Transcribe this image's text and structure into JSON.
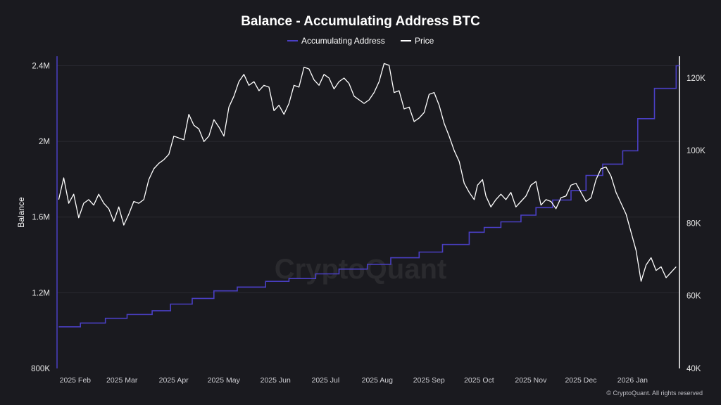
{
  "chart_data": {
    "type": "line",
    "title": "Balance - Accumulating Address BTC",
    "ylabel": "Balance",
    "ylabel_right": "",
    "ylim": [
      800000,
      2450000
    ],
    "ylim_right": [
      40000,
      126000
    ],
    "y_ticks": [
      "800K",
      "1.2M",
      "1.6M",
      "2M",
      "2.4M"
    ],
    "y_tick_values": [
      800000,
      1200000,
      1600000,
      2000000,
      2400000
    ],
    "y_right_ticks": [
      "40K",
      "60K",
      "80K",
      "100K",
      "120K"
    ],
    "y_right_tick_values": [
      40000,
      60000,
      80000,
      100000,
      120000
    ],
    "x_ticks": [
      "2025 Feb",
      "2025 Mar",
      "2025 Apr",
      "2025 May",
      "2025 Jun",
      "2025 Jul",
      "2025 Aug",
      "2025 Sep",
      "2025 Oct",
      "2025 Nov",
      "2025 Dec",
      "2026 Jan"
    ],
    "x_tick_values": [
      "2025-02-01",
      "2025-03-01",
      "2025-04-01",
      "2025-05-01",
      "2025-06-01",
      "2025-07-01",
      "2025-08-01",
      "2025-09-01",
      "2025-10-01",
      "2025-11-01",
      "2025-12-01",
      "2026-01-01"
    ],
    "xlim": [
      "2025-01-27",
      "2026-02-04"
    ],
    "grid": true,
    "legend_position": "top-center",
    "series": [
      {
        "name": "Accumulating Address",
        "axis": "left",
        "color": "#4a3fc4",
        "step": true,
        "x": [
          "2025-01-28",
          "2025-02-10",
          "2025-02-25",
          "2025-03-10",
          "2025-03-25",
          "2025-04-05",
          "2025-04-18",
          "2025-05-01",
          "2025-05-15",
          "2025-06-01",
          "2025-06-15",
          "2025-07-01",
          "2025-07-15",
          "2025-08-01",
          "2025-08-15",
          "2025-09-01",
          "2025-09-15",
          "2025-10-01",
          "2025-10-10",
          "2025-10-20",
          "2025-11-01",
          "2025-11-10",
          "2025-11-20",
          "2025-12-01",
          "2025-12-10",
          "2025-12-20",
          "2026-01-01",
          "2026-01-10",
          "2026-01-20",
          "2026-02-02"
        ],
        "values": [
          1020000,
          1040000,
          1065000,
          1085000,
          1105000,
          1140000,
          1170000,
          1210000,
          1230000,
          1260000,
          1275000,
          1300000,
          1325000,
          1350000,
          1385000,
          1415000,
          1455000,
          1520000,
          1545000,
          1575000,
          1610000,
          1650000,
          1690000,
          1740000,
          1820000,
          1880000,
          1950000,
          2120000,
          2280000,
          2400000
        ]
      },
      {
        "name": "Price",
        "axis": "right",
        "color": "#ffffff",
        "x": [
          "2025-01-28",
          "2025-01-31",
          "2025-02-03",
          "2025-02-06",
          "2025-02-09",
          "2025-02-12",
          "2025-02-15",
          "2025-02-18",
          "2025-02-21",
          "2025-02-24",
          "2025-02-27",
          "2025-03-02",
          "2025-03-05",
          "2025-03-08",
          "2025-03-11",
          "2025-03-14",
          "2025-03-17",
          "2025-03-20",
          "2025-03-23",
          "2025-03-26",
          "2025-03-29",
          "2025-04-01",
          "2025-04-04",
          "2025-04-07",
          "2025-04-10",
          "2025-04-13",
          "2025-04-16",
          "2025-04-19",
          "2025-04-22",
          "2025-04-25",
          "2025-04-28",
          "2025-05-01",
          "2025-05-04",
          "2025-05-07",
          "2025-05-10",
          "2025-05-13",
          "2025-05-16",
          "2025-05-19",
          "2025-05-22",
          "2025-05-25",
          "2025-05-28",
          "2025-05-31",
          "2025-06-03",
          "2025-06-06",
          "2025-06-09",
          "2025-06-12",
          "2025-06-15",
          "2025-06-18",
          "2025-06-21",
          "2025-06-24",
          "2025-06-27",
          "2025-06-30",
          "2025-07-03",
          "2025-07-06",
          "2025-07-09",
          "2025-07-12",
          "2025-07-15",
          "2025-07-18",
          "2025-07-21",
          "2025-07-24",
          "2025-07-27",
          "2025-07-30",
          "2025-08-02",
          "2025-08-05",
          "2025-08-08",
          "2025-08-11",
          "2025-08-14",
          "2025-08-17",
          "2025-08-20",
          "2025-08-23",
          "2025-08-26",
          "2025-08-29",
          "2025-09-01",
          "2025-09-04",
          "2025-09-07",
          "2025-09-10",
          "2025-09-13",
          "2025-09-16",
          "2025-09-19",
          "2025-09-22",
          "2025-09-25",
          "2025-09-28",
          "2025-10-01",
          "2025-10-04",
          "2025-10-06",
          "2025-10-09",
          "2025-10-11",
          "2025-10-14",
          "2025-10-17",
          "2025-10-20",
          "2025-10-23",
          "2025-10-26",
          "2025-10-29",
          "2025-11-01",
          "2025-11-04",
          "2025-11-07",
          "2025-11-10",
          "2025-11-13",
          "2025-11-16",
          "2025-11-19",
          "2025-11-22",
          "2025-11-25",
          "2025-11-28",
          "2025-12-01",
          "2025-12-04",
          "2025-12-07",
          "2025-12-10",
          "2025-12-13",
          "2025-12-16",
          "2025-12-19",
          "2025-12-22",
          "2025-12-25",
          "2025-12-28",
          "2025-12-31",
          "2026-01-03",
          "2026-01-06",
          "2026-01-09",
          "2026-01-12",
          "2026-01-15",
          "2026-01-18",
          "2026-01-21",
          "2026-01-24",
          "2026-01-27",
          "2026-01-30",
          "2026-02-02"
        ],
        "values": [
          86500,
          92500,
          85500,
          88000,
          81500,
          85500,
          86500,
          85000,
          88000,
          85500,
          84000,
          80500,
          84500,
          79500,
          82500,
          86000,
          85500,
          86500,
          92000,
          95000,
          96500,
          97500,
          99000,
          104000,
          103500,
          103000,
          110000,
          107000,
          106000,
          102500,
          104000,
          108500,
          106500,
          104000,
          112000,
          115000,
          119000,
          121000,
          118000,
          119000,
          116500,
          118000,
          117500,
          111000,
          112500,
          110000,
          113000,
          118000,
          117500,
          123000,
          122500,
          119500,
          118000,
          121000,
          120000,
          117000,
          119000,
          120000,
          118500,
          115000,
          114000,
          113000,
          114000,
          116000,
          119000,
          124000,
          123500,
          116000,
          116500,
          111500,
          112000,
          108000,
          109000,
          110500,
          115500,
          116000,
          112500,
          107500,
          104000,
          100000,
          97000,
          91000,
          88500,
          86500,
          90500,
          92000,
          87500,
          84500,
          86500,
          88000,
          86500,
          88500,
          84500,
          86000,
          87500,
          90500,
          91500,
          85000,
          86500,
          86000,
          84000,
          87000,
          87500,
          90500,
          91000,
          88500,
          86000,
          87000,
          92000,
          95000,
          95500,
          93000,
          88500,
          85500,
          82500,
          77500,
          72500,
          64000,
          68500,
          70500,
          67000,
          68000,
          65000,
          66500,
          68000
        ]
      }
    ]
  },
  "watermark": "CryptoQuant",
  "credit": "© CryptoQuant. All rights reserved",
  "colors": {
    "background": "#1a1a1f",
    "grid": "#2a2a31",
    "accumulating": "#4a3fc4",
    "price": "#ffffff"
  }
}
